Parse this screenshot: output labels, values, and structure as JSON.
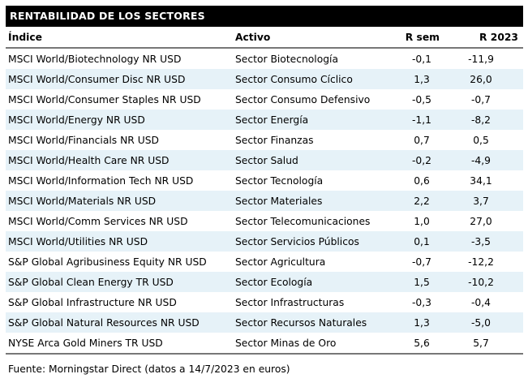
{
  "title": "RENTABILIDAD DE LOS SECTORES",
  "colors": {
    "title_bar_bg": "#000000",
    "title_bar_text": "#ffffff",
    "row_alt_bg": "#e6f2f8",
    "divider": "#777777",
    "text": "#000000"
  },
  "chart_data": {
    "type": "table",
    "title": "RENTABILIDAD DE LOS SECTORES",
    "columns": [
      "Índice",
      "Activo",
      "R sem",
      "R 2023"
    ],
    "rows": [
      [
        "MSCI World/Biotechnology NR USD",
        "Sector Biotecnología",
        "-0,1",
        "-11,9"
      ],
      [
        "MSCI World/Consumer Disc NR USD",
        "Sector Consumo Cíclico",
        "1,3",
        "26,0"
      ],
      [
        "MSCI World/Consumer Staples NR USD",
        "Sector Consumo Defensivo",
        "-0,5",
        "-0,7"
      ],
      [
        "MSCI World/Energy NR USD",
        "Sector Energía",
        "-1,1",
        "-8,2"
      ],
      [
        "MSCI World/Financials NR USD",
        "Sector Finanzas",
        "0,7",
        "0,5"
      ],
      [
        "MSCI World/Health Care NR USD",
        "Sector Salud",
        "-0,2",
        "-4,9"
      ],
      [
        "MSCI World/Information Tech NR USD",
        "Sector Tecnología",
        "0,6",
        "34,1"
      ],
      [
        "MSCI World/Materials NR USD",
        "Sector Materiales",
        "2,2",
        "3,7"
      ],
      [
        "MSCI World/Comm Services NR USD",
        "Sector Telecomunicaciones",
        "1,0",
        "27,0"
      ],
      [
        "MSCI World/Utilities NR USD",
        "Sector Servicios Públicos",
        "0,1",
        "-3,5"
      ],
      [
        "S&P Global Agribusiness Equity NR USD",
        "Sector Agricultura",
        "-0,7",
        "-12,2"
      ],
      [
        "S&P Global Clean Energy TR USD",
        "Sector Ecología",
        "1,5",
        "-10,2"
      ],
      [
        "S&P Global Infrastructure NR USD",
        "Sector Infrastructuras",
        "-0,3",
        "-0,4"
      ],
      [
        "S&P Global Natural Resources NR USD",
        "Sector Recursos Naturales",
        "1,3",
        "-5,0"
      ],
      [
        "NYSE Arca Gold Miners TR USD",
        "Sector Minas de Oro",
        "5,6",
        "5,7"
      ]
    ]
  },
  "footer": {
    "source_text": "Fuente: Morningstar Direct (datos a 14/7/2023 en euros)"
  }
}
